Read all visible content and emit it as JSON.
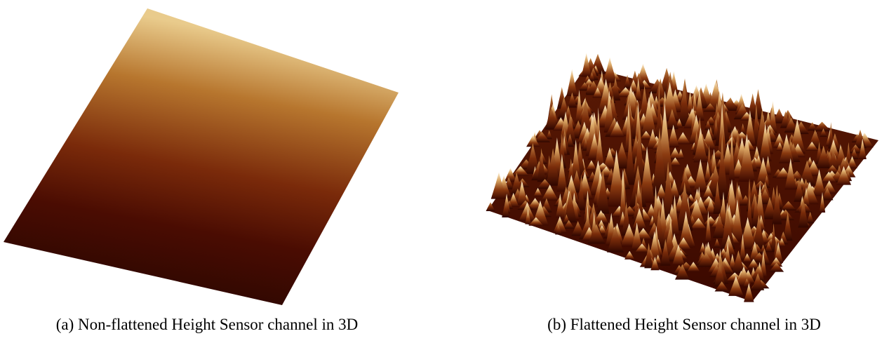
{
  "figures": [
    {
      "caption": "(a) Non-flattened Height Sensor channel in 3D"
    },
    {
      "caption": "(b) Flattened Height Sensor channel in 3D"
    }
  ]
}
